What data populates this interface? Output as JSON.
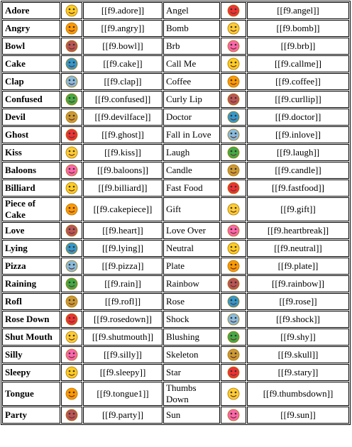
{
  "rows": [
    {
      "name": "Adore",
      "code": "[[f9.adore]]",
      "name2": "Angel",
      "code2": "[[f9.angel]]"
    },
    {
      "name": "Angry",
      "code": "[[f9.angry]]",
      "name2": "Bomb",
      "code2": "[[f9.bomb]]"
    },
    {
      "name": "Bowl",
      "code": "[[f9.bowl]]",
      "name2": "Brb",
      "code2": "[[f9.brb]]"
    },
    {
      "name": "Cake",
      "code": "[[f9.cake]]",
      "name2": "Call Me",
      "code2": "[[f9.callme]]"
    },
    {
      "name": "Clap",
      "code": "[[f9.clap]]",
      "name2": "Coffee",
      "code2": "[[f9.coffee]]"
    },
    {
      "name": "Confused",
      "code": "[[f9.confused]]",
      "name2": "Curly Lip",
      "code2": "[[f9.curllip]]"
    },
    {
      "name": "Devil",
      "code": "[[f9.devilface]]",
      "name2": "Doctor",
      "code2": "[[f9.doctor]]"
    },
    {
      "name": "Ghost",
      "code": "[[f9.ghost]]",
      "name2": "Fall in Love",
      "code2": "[[f9.inlove]]"
    },
    {
      "name": "Kiss",
      "code": "[[f9.kiss]]",
      "name2": "Laugh",
      "code2": "[[f9.laugh]]"
    },
    {
      "name": "Baloons",
      "code": "[[f9.baloons]]",
      "name2": "Candle",
      "code2": "[[f9.candle]]"
    },
    {
      "name": "Billiard",
      "code": "[[f9.billiard]]",
      "name2": "Fast Food",
      "code2": "[[f9.fastfood]]"
    },
    {
      "name": "Piece of Cake",
      "code": "[[f9.cakepiece]]",
      "name2": "Gift",
      "code2": "[[f9.gift]]"
    },
    {
      "name": "Love",
      "code": "[[f9.heart]]",
      "name2": "Love Over",
      "code2": "[[f9.heartbreak]]"
    },
    {
      "name": "Lying",
      "code": "[[f9.lying]]",
      "name2": "Neutral",
      "code2": "[[f9.neutral]]"
    },
    {
      "name": "Pizza",
      "code": "[[f9.pizza]]",
      "name2": "Plate",
      "code2": "[[f9.plate]]"
    },
    {
      "name": "Raining",
      "code": "[[f9.rain]]",
      "name2": "Rainbow",
      "code2": "[[f9.rainbow]]"
    },
    {
      "name": "Rofl",
      "code": "[[f9.rofl]]",
      "name2": "Rose",
      "code2": "[[f9.rose]]"
    },
    {
      "name": "Rose Down",
      "code": "[[f9.rosedown]]",
      "name2": "Shock",
      "code2": "[[f9.shock]]"
    },
    {
      "name": "Shut Mouth",
      "code": "[[f9.shutmouth]]",
      "name2": "Blushing",
      "code2": "[[f9.shy]]"
    },
    {
      "name": "Silly",
      "code": "[[f9.silly]]",
      "name2": "Skeleton",
      "code2": "[[f9.skull]]"
    },
    {
      "name": "Sleepy",
      "code": "[[f9.sleepy]]",
      "name2": "Star",
      "code2": "[[f9.stary]]"
    },
    {
      "name": "Tongue",
      "code": "[[f9.tongue1]]",
      "name2": "Thumbs Down",
      "code2": "[[f9.thumbsdown]]"
    },
    {
      "name": "Party",
      "code": "[[f9.party]]",
      "name2": "Sun",
      "code2": "[[f9.sun]]"
    }
  ]
}
